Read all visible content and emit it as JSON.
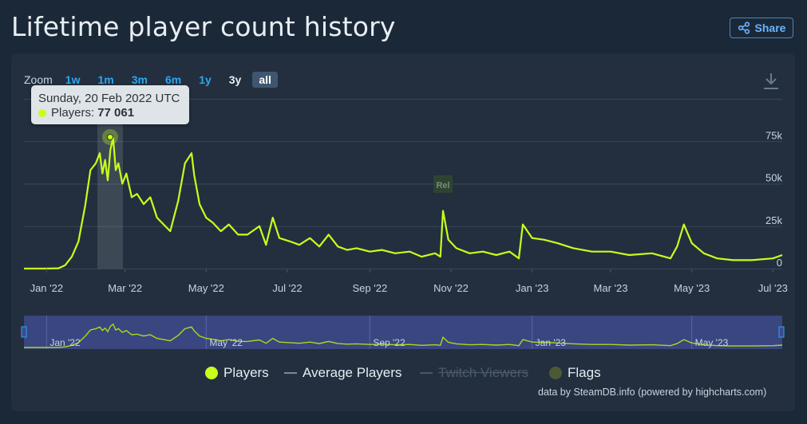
{
  "page": {
    "title": "Lifetime player count history"
  },
  "share": {
    "label": "Share"
  },
  "zoom": {
    "label": "Zoom",
    "options": [
      "1w",
      "1m",
      "3m",
      "6m",
      "1y",
      "3y",
      "all"
    ],
    "selected": "all"
  },
  "tooltip": {
    "date": "Sunday, 20 Feb 2022 UTC",
    "series_label": "Players:",
    "value": "77 061"
  },
  "flag": {
    "label": "Rel"
  },
  "legend": {
    "players": "Players",
    "average": "Average Players",
    "twitch": "Twitch Viewers",
    "flags": "Flags"
  },
  "credit": "data by SteamDB.info (powered by highcharts.com)",
  "colors": {
    "players": "#c7ff1c",
    "background": "#1b2838",
    "panel": "#232f3e",
    "accent": "#2aa7f3"
  },
  "chart_data": {
    "type": "line",
    "title": "Lifetime player count history",
    "y_ticks": [
      "0",
      "25k",
      "50k",
      "75k"
    ],
    "ylim": [
      0,
      100000
    ],
    "x_ticks": [
      "Jan '22",
      "Mar '22",
      "May '22",
      "Jul '22",
      "Sep '22",
      "Nov '22",
      "Jan '23",
      "Mar '23",
      "May '23",
      "Jul '23"
    ],
    "navigator_ticks": [
      "Jan '22",
      "May '22",
      "Sep '22",
      "Jan '23",
      "May '23"
    ],
    "grid": true,
    "series": [
      {
        "name": "Players",
        "x": [
          "2021-12-15",
          "2022-01-01",
          "2022-01-10",
          "2022-01-15",
          "2022-01-20",
          "2022-01-25",
          "2022-01-30",
          "2022-02-03",
          "2022-02-07",
          "2022-02-10",
          "2022-02-12",
          "2022-02-14",
          "2022-02-16",
          "2022-02-18",
          "2022-02-20",
          "2022-02-22",
          "2022-02-24",
          "2022-02-27",
          "2022-03-02",
          "2022-03-06",
          "2022-03-10",
          "2022-03-15",
          "2022-03-20",
          "2022-03-25",
          "2022-03-30",
          "2022-04-04",
          "2022-04-10",
          "2022-04-15",
          "2022-04-20",
          "2022-04-22",
          "2022-04-26",
          "2022-05-01",
          "2022-05-06",
          "2022-05-12",
          "2022-05-18",
          "2022-05-25",
          "2022-06-01",
          "2022-06-10",
          "2022-06-15",
          "2022-06-20",
          "2022-06-25",
          "2022-07-03",
          "2022-07-10",
          "2022-07-18",
          "2022-07-25",
          "2022-08-01",
          "2022-08-08",
          "2022-08-15",
          "2022-08-22",
          "2022-09-01",
          "2022-09-10",
          "2022-09-20",
          "2022-10-01",
          "2022-10-10",
          "2022-10-20",
          "2022-10-24",
          "2022-10-26",
          "2022-10-30",
          "2022-11-05",
          "2022-11-15",
          "2022-11-25",
          "2022-12-05",
          "2022-12-15",
          "2022-12-22",
          "2022-12-25",
          "2023-01-01",
          "2023-01-10",
          "2023-01-20",
          "2023-02-01",
          "2023-02-15",
          "2023-03-01",
          "2023-03-15",
          "2023-04-01",
          "2023-04-15",
          "2023-04-20",
          "2023-04-25",
          "2023-05-01",
          "2023-05-10",
          "2023-05-20",
          "2023-06-01",
          "2023-06-15",
          "2023-07-01",
          "2023-07-08"
        ],
        "values": [
          0,
          0,
          200,
          2000,
          7000,
          16000,
          37000,
          58000,
          62000,
          68000,
          56000,
          64000,
          52000,
          70000,
          77061,
          58000,
          62000,
          50000,
          56000,
          42000,
          44000,
          38000,
          42000,
          30000,
          26000,
          22000,
          40000,
          62000,
          68000,
          55000,
          38000,
          30000,
          27000,
          22000,
          26000,
          20000,
          20000,
          25000,
          14000,
          30000,
          18000,
          16000,
          14000,
          18000,
          13000,
          20000,
          13000,
          11000,
          12000,
          10000,
          11000,
          9000,
          10000,
          7000,
          9000,
          7000,
          34000,
          17000,
          12000,
          9000,
          10000,
          8000,
          10000,
          6000,
          26000,
          18000,
          17000,
          15000,
          12000,
          10000,
          10000,
          8000,
          9000,
          6000,
          13000,
          26000,
          15000,
          9000,
          6000,
          5000,
          5000,
          6000,
          8000
        ]
      }
    ]
  }
}
